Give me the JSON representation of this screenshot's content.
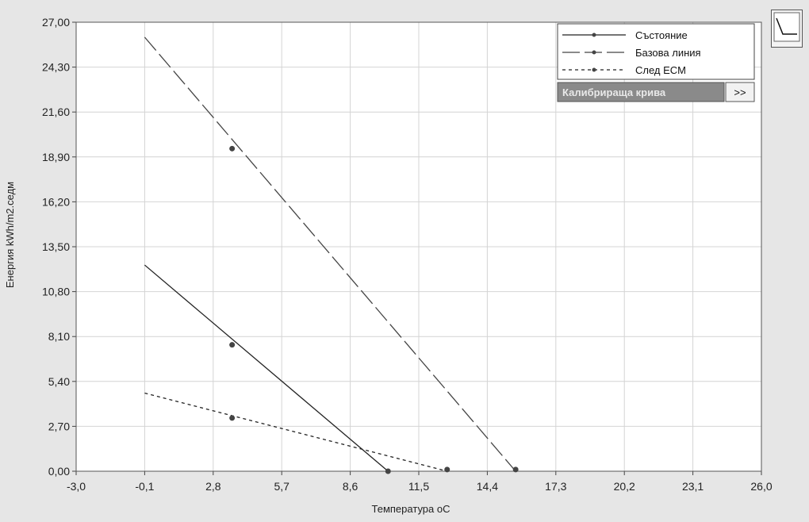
{
  "chart_data": {
    "type": "line",
    "title": "",
    "xlabel": "Температура oC",
    "ylabel": "Енергия kWh/m2.седм",
    "xlim": [
      -3.0,
      26.0
    ],
    "ylim": [
      0.0,
      27.0
    ],
    "x_ticks": [
      "-3,0",
      "-0,1",
      "2,8",
      "5,7",
      "8,6",
      "11,5",
      "14,4",
      "17,3",
      "20,2",
      "23,1",
      "26,0"
    ],
    "y_ticks": [
      "0,00",
      "2,70",
      "5,40",
      "8,10",
      "10,80",
      "13,50",
      "16,20",
      "18,90",
      "21,60",
      "24,30",
      "27,00"
    ],
    "grid": true,
    "legend_position": "top-right",
    "series": [
      {
        "name": "Състояние",
        "style": "solid",
        "color": "#222222",
        "x": [
          -0.1,
          10.2
        ],
        "y": [
          12.4,
          0.0
        ],
        "markers": [
          {
            "x": 3.6,
            "y": 7.6
          },
          {
            "x": 10.2,
            "y": 0.0
          }
        ]
      },
      {
        "name": "Базова линия",
        "style": "dashed",
        "color": "#444444",
        "x": [
          -0.1,
          15.6
        ],
        "y": [
          26.1,
          0.0
        ],
        "markers": [
          {
            "x": 3.6,
            "y": 19.4
          },
          {
            "x": 15.6,
            "y": 0.1
          }
        ]
      },
      {
        "name": "След ECM",
        "style": "dotted",
        "color": "#222222",
        "x": [
          -0.1,
          12.7
        ],
        "y": [
          4.7,
          0.0
        ],
        "markers": [
          {
            "x": 3.6,
            "y": 3.2
          },
          {
            "x": 12.7,
            "y": 0.1
          }
        ]
      }
    ]
  },
  "legend": {
    "calibration_button_label": "Калибрираща крива",
    "expand_button_label": ">>"
  },
  "toolbar": {
    "chart_type_icon": "line-chart-icon"
  }
}
